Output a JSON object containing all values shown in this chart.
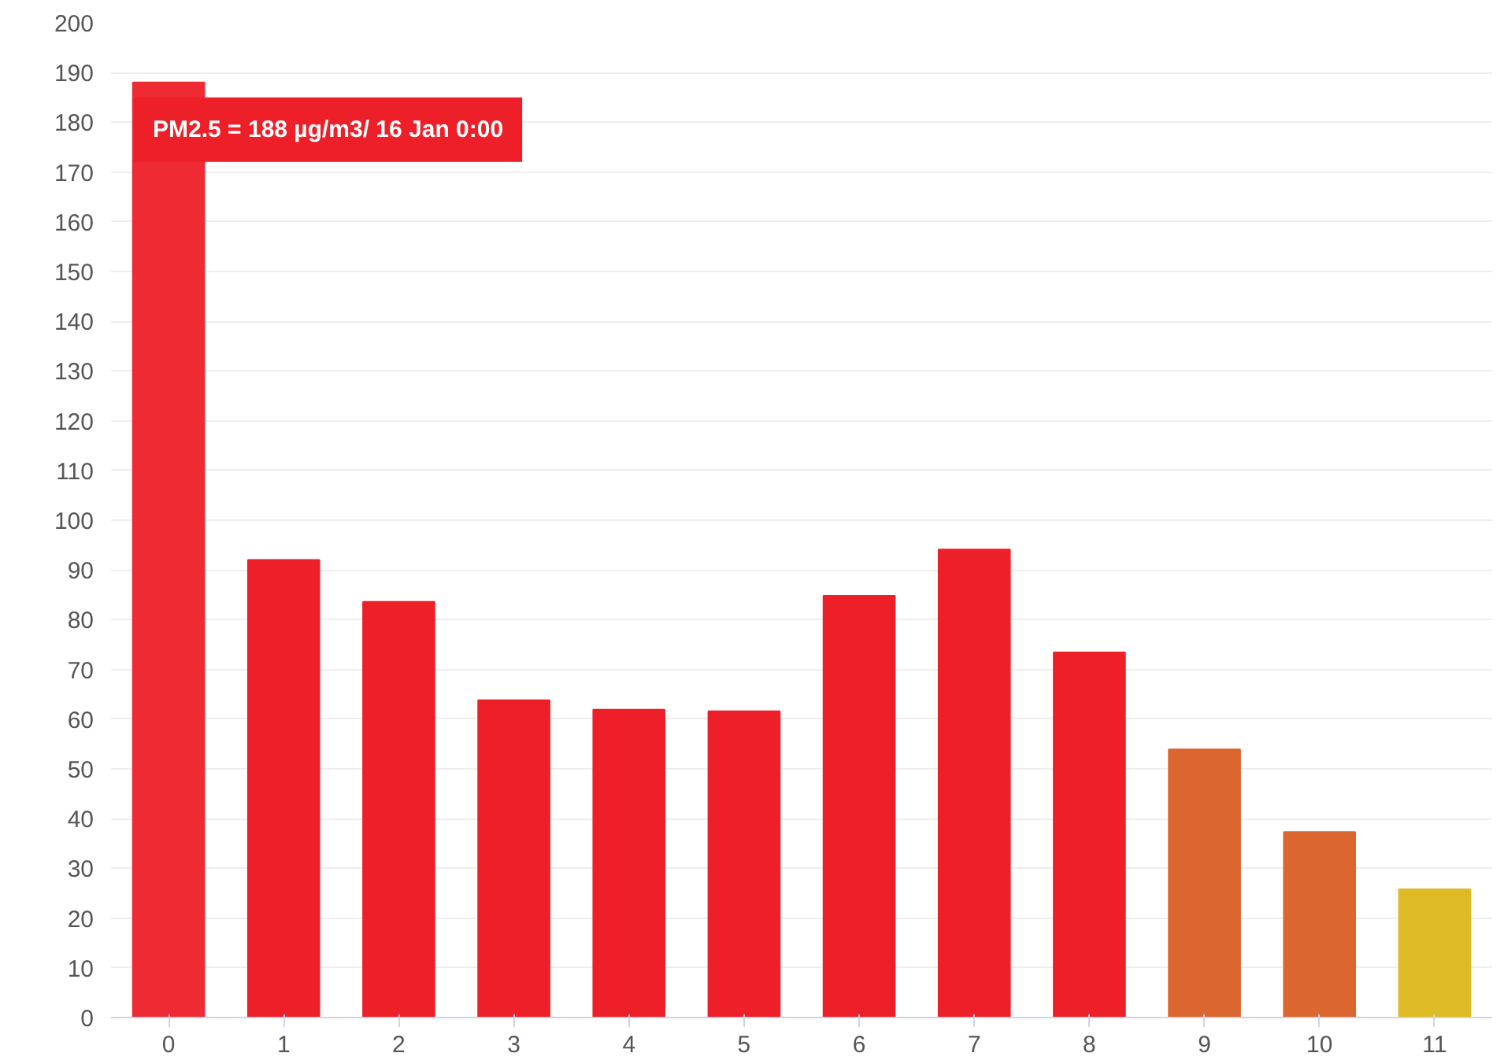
{
  "chart_data": {
    "type": "bar",
    "categories": [
      "0",
      "1",
      "2",
      "3",
      "4",
      "5",
      "6",
      "7",
      "8",
      "9",
      "10",
      "11"
    ],
    "values": [
      188,
      92,
      83.6,
      63.8,
      61.9,
      61.6,
      84.8,
      94.1,
      73.4,
      53.9,
      37.3,
      25.8
    ],
    "colors": [
      "#ee2a33",
      "#ed2029",
      "#ed2029",
      "#ed2029",
      "#ed2029",
      "#ed2029",
      "#ed2029",
      "#ed2029",
      "#ed2029",
      "#dc6630",
      "#dc6630",
      "#dfba27"
    ],
    "ylim": [
      0,
      200
    ],
    "yticks": [
      0,
      10,
      20,
      30,
      40,
      50,
      60,
      70,
      80,
      90,
      100,
      110,
      120,
      130,
      140,
      150,
      160,
      170,
      180,
      190,
      200
    ],
    "grid": "y",
    "annotations": [
      {
        "text": "PM2.5 = 188 µg/m3/ 16 Jan 0:00",
        "x": "0",
        "y": 188
      }
    ]
  }
}
